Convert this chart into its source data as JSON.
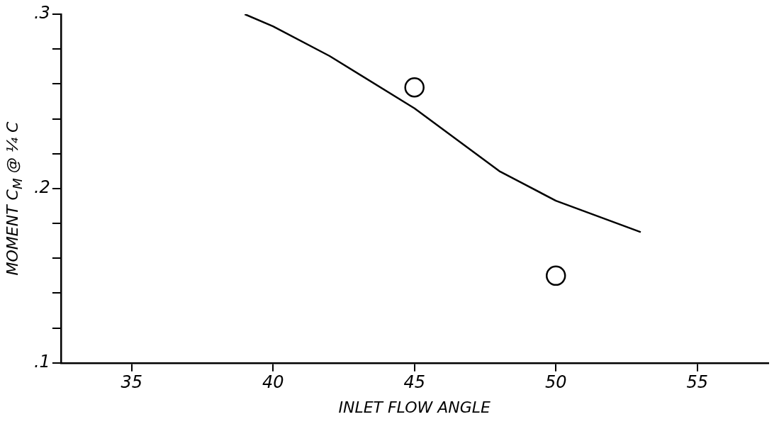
{
  "chart_data": {
    "type": "scatter",
    "xlabel": "INLET FLOW ANGLE",
    "ylabel": "MOMENT   C$_{M}$ @ ¼ C",
    "xlim": [
      32.5,
      57.5
    ],
    "xticks": [
      35,
      40,
      45,
      50,
      55
    ],
    "ylim": [
      0.1,
      0.3
    ],
    "yticks": [
      {
        "value": 0.1,
        "label": ".1"
      },
      {
        "value": 0.12,
        "label": null
      },
      {
        "value": 0.14,
        "label": null
      },
      {
        "value": 0.16,
        "label": null
      },
      {
        "value": 0.18,
        "label": null
      },
      {
        "value": 0.2,
        "label": ".2"
      },
      {
        "value": 0.22,
        "label": null
      },
      {
        "value": 0.24,
        "label": null
      },
      {
        "value": 0.26,
        "label": null
      },
      {
        "value": 0.28,
        "label": null
      },
      {
        "value": 0.3,
        "label": ".3"
      }
    ],
    "grid": false,
    "legend": false,
    "marker": "circle",
    "series": [
      {
        "type": "line",
        "marker": "none",
        "color": "#000000",
        "x": [
          39,
          40,
          42,
          45,
          48,
          50,
          53
        ],
        "values": [
          0.3,
          0.293,
          0.276,
          0.246,
          0.21,
          0.193,
          0.175
        ]
      },
      {
        "color": "#000000",
        "x": [
          45,
          50
        ],
        "values": [
          0.258,
          0.15
        ]
      }
    ]
  }
}
